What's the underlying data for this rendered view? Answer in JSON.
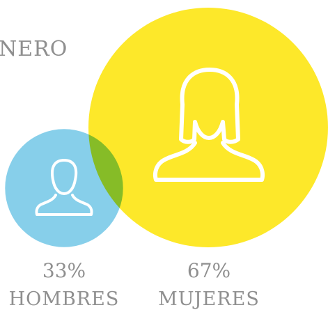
{
  "chart_data": {
    "type": "bubble",
    "title": "NERO",
    "categories": [
      "HOMBRES",
      "MUJERES"
    ],
    "values": [
      33,
      67
    ],
    "value_labels": [
      "33%",
      "67%"
    ],
    "colors": [
      "#87cfea",
      "#fde82a"
    ]
  }
}
